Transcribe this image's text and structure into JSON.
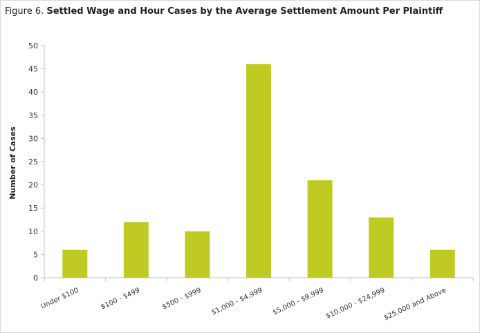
{
  "title": {
    "prefix": "Figure 6.",
    "main": "Settled Wage and Hour Cases by the Average Settlement Amount Per Plaintiff"
  },
  "colors": {
    "bar": "#bfca23",
    "axis": "#bfbfbf"
  },
  "chart_data": {
    "type": "bar",
    "title": "Figure 6. Settled Wage and Hour Cases by the Average Settlement Amount Per Plaintiff",
    "xlabel": "",
    "ylabel": "Number of Cases",
    "categories": [
      "Under $100",
      "$100 - $499",
      "$500 - $999",
      "$1,000 - $4,999",
      "$5,000 - $9,999",
      "$10,000 - $24,999",
      "$25,000 and Above"
    ],
    "values": [
      6,
      12,
      10,
      46,
      21,
      13,
      6
    ],
    "ylim": [
      0,
      50
    ],
    "yticks": [
      0,
      5,
      10,
      15,
      20,
      25,
      30,
      35,
      40,
      45,
      50
    ],
    "grid": false,
    "legend": "none"
  }
}
